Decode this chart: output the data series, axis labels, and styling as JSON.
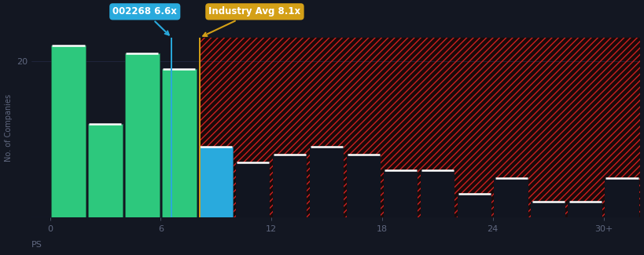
{
  "background_color": "#131722",
  "ylabel": "No. of Companies",
  "ytick_labels": [
    "20"
  ],
  "ytick_values": [
    20
  ],
  "ylim": [
    0,
    23
  ],
  "xtick_positions": [
    0,
    6,
    12,
    18,
    24,
    30
  ],
  "xtick_labels": [
    "0",
    "6",
    "12",
    "18",
    "24",
    "30+"
  ],
  "ps_label": "PS",
  "company_value": 6.6,
  "industry_avg": 8.1,
  "company_label": "002268 6.6x",
  "industry_label": "Industry Avg 8.1x",
  "company_label_bg": "#29aadd",
  "industry_label_bg": "#d4a017",
  "bar_width": 2.0,
  "bin_starts": [
    0,
    2,
    4,
    6,
    8,
    10,
    12,
    14,
    16,
    18,
    20,
    22,
    24,
    26,
    28,
    30
  ],
  "heights": [
    22,
    12,
    21,
    19,
    9,
    7,
    8,
    9,
    8,
    6,
    6,
    3,
    5,
    2,
    2,
    5
  ],
  "green_color": "#2dc87d",
  "dark_green_color": "#1b6b4a",
  "blue_color": "#29aadd",
  "hatch_bg_color": "#1a0a0a",
  "hatch_line_color": "#cc2020",
  "dark_bar_color": "#111520",
  "tick_color": "#606880",
  "xlim_left": -1,
  "xlim_right": 32
}
